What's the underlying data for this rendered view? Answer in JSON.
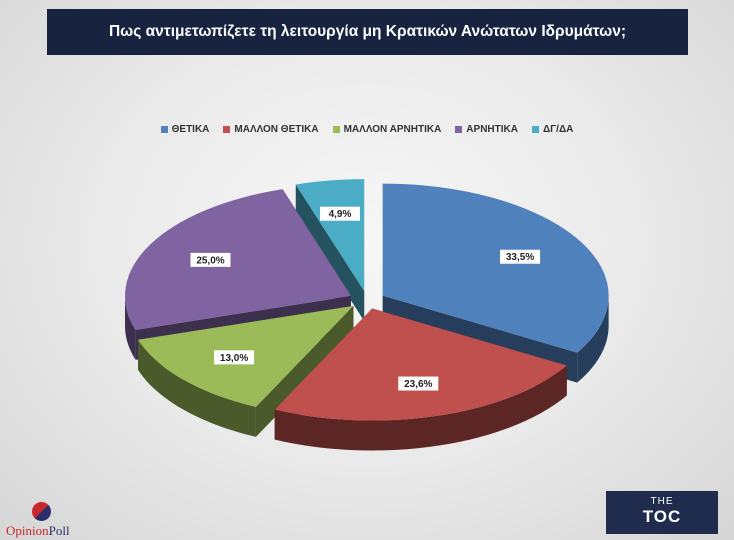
{
  "header": {
    "title": "Πως αντιμετωπίζετε τη λειτουργία μη Κρατικών Ανώτατων Ιδρυμάτων;"
  },
  "chart_data": {
    "type": "pie",
    "title": "Πως αντιμετωπίζετε τη λειτουργία μη Κρατικών Ανώτατων Ιδρυμάτων;",
    "legend_position": "top",
    "slices": [
      {
        "label": "ΘΕΤΙΚΑ",
        "value": 33.5,
        "display": "33,5%",
        "color": "#4f81bd"
      },
      {
        "label": "ΜΑΛΛΟΝ ΘΕΤΙΚΑ",
        "value": 23.6,
        "display": "23,6%",
        "color": "#c0504d"
      },
      {
        "label": "ΜΑΛΛΟΝ ΑΡΝΗΤΙΚΑ",
        "value": 13.0,
        "display": "13,0%",
        "color": "#9bbb59"
      },
      {
        "label": "ΑΡΝΗΤΙΚΑ",
        "value": 25.0,
        "display": "25,0%",
        "color": "#8064a2"
      },
      {
        "label": "ΔΓ/ΔΑ",
        "value": 4.9,
        "display": "4,9%",
        "color": "#4bacc6"
      }
    ]
  },
  "logos": {
    "opinion_poll_a": "Opinion",
    "opinion_poll_b": "Poll",
    "toc_the": "THE",
    "toc_main": "TOC"
  }
}
